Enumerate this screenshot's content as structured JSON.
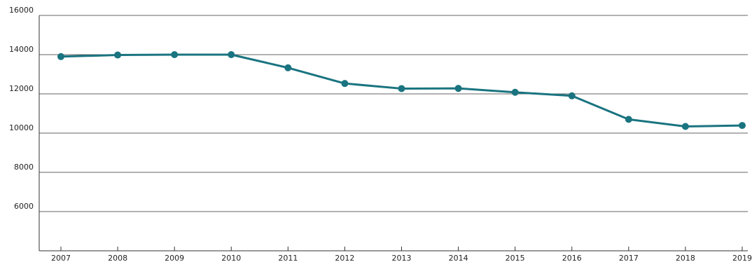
{
  "chart_data": {
    "type": "line",
    "title": "",
    "xlabel": "",
    "ylabel": "",
    "categories": [
      "2007",
      "2008",
      "2009",
      "2010",
      "2011",
      "2012",
      "2013",
      "2014",
      "2015",
      "2016",
      "2017",
      "2018",
      "2019"
    ],
    "series": [
      {
        "values": [
          13900,
          13980,
          14000,
          14000,
          13330,
          12530,
          12270,
          12280,
          12080,
          11900,
          10700,
          10340,
          10390
        ],
        "color": "#1a7480"
      }
    ],
    "ylim": [
      4000,
      16000
    ],
    "yticks": [
      6000,
      8000,
      10000,
      12000,
      14000,
      16000
    ],
    "y_tick_labels": [
      "6000",
      "8000",
      "10000",
      "12000",
      "14000",
      "16000"
    ],
    "grid": "horizontal",
    "legend": "none"
  }
}
